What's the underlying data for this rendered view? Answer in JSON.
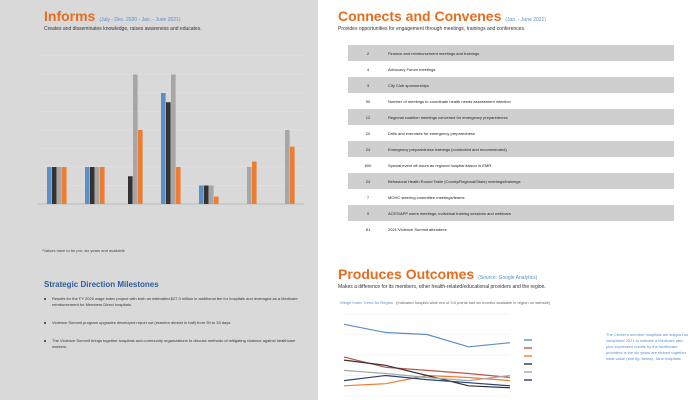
{
  "inform": {
    "title": "Informs",
    "subtitle": "(July - Dec. 2020 - Jan. - June 2021)",
    "description": "Creates and disseminates knowledge, raises awareness and educates.",
    "note": "*Values have to be pre, six years and available"
  },
  "strategic": {
    "title": "Strategic Direction Milestones",
    "items": [
      "Results for the FY 2020 wage index project with both an estimated $27.3 million in additional fee for hospitals and leveraged as a Medicare reimbursement for Members Direct hospitals.",
      "Violence Summit program upgrades developed report cut (reaction almost in half) from 90 to 33 days.",
      "The Violence Summit brings together hospitals and community organizations to discuss methods of mitigating violence against healthcare workers."
    ]
  },
  "connects": {
    "title": "Connects and Convenes",
    "subtitle": "(Jan. - June 2021)",
    "description": "Provides opportunities for engagement through meetings, trainings and conferences.",
    "rows": [
      {
        "num": "2",
        "label": "Finance and reimbursement meetings and trainings"
      },
      {
        "num": "4",
        "label": "Advocacy Forum meetings"
      },
      {
        "num": "3",
        "label": "City Club sponsorships"
      },
      {
        "num": "90",
        "label": "Number of meetings to coordinate health needs assessment infection"
      },
      {
        "num": "12",
        "label": "Regional coalition meetings convened for emergency preparedness"
      },
      {
        "num": "20",
        "label": "Drills and exercises for emergency preparedness"
      },
      {
        "num": "24",
        "label": "Emergency preparedness trainings (conducted and recommended)"
      },
      {
        "num": "600",
        "label": "Special event off-hours as regional hospital liaison in EMR"
      },
      {
        "num": "24",
        "label": "Behavioral Health Round Table (County/Regional/State) meetings/trainings"
      },
      {
        "num": "7",
        "label": "MOHC steering committee meetings/teams"
      },
      {
        "num": "9",
        "label": "ACES/APP users meetings, individual training sessions and webinars"
      },
      {
        "num": "81",
        "label": "2021 Violence Summit attendees"
      }
    ]
  },
  "outcomes": {
    "title": "Produces Outcomes",
    "subtitle": "(Source: Google Analytics)",
    "description": "Makes a difference for its members, other health-related/educational providers and the region.",
    "chart_title": "Weigh Index Trend for Region",
    "chart_subtitle": "(Indicated hospital wide era of 3.5 points last six months available in region on website)",
    "side_text": "The Center's member hospitals are support us comprised 2021 to indicate a Medicare rate plus expressed results by the healthcare providers is the six years are shared together what value (see fig. below). Nine hospitals"
  },
  "inform_chart": {
    "type": "bar",
    "categories": [
      "",
      "",
      "",
      "",
      "",
      "",
      ""
    ],
    "series": [
      {
        "name": "",
        "color": "#5b8fc7",
        "values": [
          2,
          2,
          0,
          6,
          1,
          0,
          0
        ]
      },
      {
        "name": "",
        "color": "#333333",
        "values": [
          2,
          2,
          1.5,
          5.5,
          1,
          0,
          0
        ]
      },
      {
        "name": "",
        "color": "#a6a6a6",
        "values": [
          2,
          2,
          7,
          7,
          1,
          2,
          4
        ]
      },
      {
        "name": "",
        "color": "#ed7d31",
        "values": [
          2,
          2,
          4,
          2,
          0.4,
          2.3,
          3.1
        ]
      }
    ],
    "ylim": [
      0,
      8
    ]
  },
  "outcome_chart": {
    "type": "line",
    "x": [
      1,
      2,
      3,
      4,
      5
    ],
    "series": [
      {
        "name": "",
        "color": "#5b8fc7",
        "values": [
          0.9,
          0.82,
          0.8,
          0.68,
          0.72
        ]
      },
      {
        "name": "",
        "color": "#c0504d",
        "values": [
          0.58,
          0.48,
          0.45,
          0.42,
          0.38
        ]
      },
      {
        "name": "",
        "color": "#ed7d31",
        "values": [
          0.3,
          0.32,
          0.4,
          0.38,
          0.35
        ]
      },
      {
        "name": "",
        "color": "#333333",
        "values": [
          0.55,
          0.5,
          0.4,
          0.3,
          0.28
        ]
      },
      {
        "name": "",
        "color": "#a6a6a6",
        "values": [
          0.45,
          0.42,
          0.38,
          0.35,
          0.4
        ]
      },
      {
        "name": "",
        "color": "#264478",
        "values": [
          0.35,
          0.4,
          0.36,
          0.33,
          0.3
        ]
      }
    ],
    "ylim": [
      0.2,
      1.0
    ]
  }
}
